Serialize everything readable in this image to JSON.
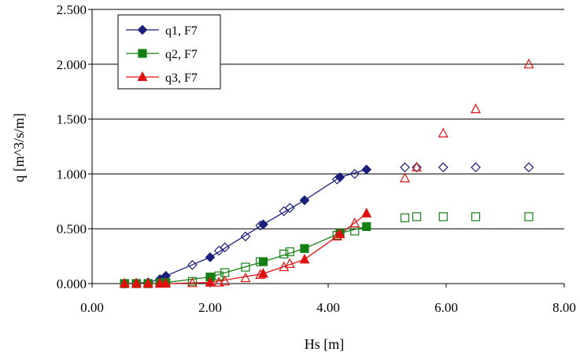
{
  "chart_data": {
    "type": "scatter",
    "title": "",
    "xlabel": "Hs [m]",
    "ylabel": "q [m^3/s/m]",
    "xlim": [
      0,
      8
    ],
    "ylim": [
      0,
      2.5
    ],
    "x_ticks": [
      "0.00",
      "2.00",
      "4.00",
      "6.00",
      "8.00"
    ],
    "y_ticks": [
      "0.000",
      "0.500",
      "1.000",
      "1.500",
      "2.000",
      "2.500"
    ],
    "x_tick_values": [
      0,
      2,
      4,
      6,
      8
    ],
    "y_tick_values": [
      0,
      0.5,
      1.0,
      1.5,
      2.0,
      2.5
    ],
    "grid": "horizontal",
    "legend_position": "top-left",
    "series": [
      {
        "name": "q1, F7",
        "color": "#1a1f7a",
        "marker": "diamond",
        "filled": {
          "x": [
            0.55,
            0.75,
            0.95,
            1.15,
            1.25,
            2.0,
            2.9,
            3.6,
            4.2,
            4.65
          ],
          "y": [
            0.0,
            0.005,
            0.01,
            0.04,
            0.07,
            0.24,
            0.54,
            0.76,
            0.97,
            1.04
          ]
        },
        "open": {
          "x": [
            0.55,
            0.75,
            0.95,
            1.15,
            1.7,
            2.15,
            2.25,
            2.6,
            2.85,
            3.25,
            3.35,
            4.15,
            4.45,
            5.3,
            5.5,
            5.95,
            6.5,
            7.4
          ],
          "y": [
            0.0,
            0.005,
            0.01,
            0.03,
            0.17,
            0.3,
            0.33,
            0.43,
            0.53,
            0.66,
            0.69,
            0.95,
            1.0,
            1.06,
            1.06,
            1.06,
            1.06,
            1.06
          ]
        }
      },
      {
        "name": "q2, F7",
        "color": "#138013",
        "marker": "square",
        "filled": {
          "x": [
            0.55,
            0.75,
            0.95,
            1.15,
            1.25,
            2.0,
            2.9,
            3.6,
            4.2,
            4.65
          ],
          "y": [
            0.0,
            0.0,
            0.0,
            0.005,
            0.01,
            0.06,
            0.2,
            0.32,
            0.46,
            0.52
          ]
        },
        "open": {
          "x": [
            0.55,
            0.75,
            0.95,
            1.15,
            1.7,
            2.15,
            2.25,
            2.6,
            2.85,
            3.25,
            3.35,
            4.15,
            4.45,
            5.3,
            5.5,
            5.95,
            6.5,
            7.4
          ],
          "y": [
            0.0,
            0.0,
            0.0,
            0.005,
            0.02,
            0.07,
            0.1,
            0.15,
            0.2,
            0.27,
            0.29,
            0.44,
            0.48,
            0.6,
            0.61,
            0.61,
            0.61,
            0.61
          ]
        }
      },
      {
        "name": "q3, F7",
        "color": "#e01010",
        "marker": "triangle",
        "filled": {
          "x": [
            0.55,
            0.75,
            0.95,
            1.15,
            1.25,
            2.0,
            2.9,
            3.6,
            4.2,
            4.65
          ],
          "y": [
            0.0,
            0.0,
            0.0,
            0.0,
            0.0,
            0.01,
            0.09,
            0.22,
            0.45,
            0.64
          ]
        },
        "open": {
          "x": [
            0.55,
            0.75,
            0.95,
            1.15,
            1.7,
            2.15,
            2.25,
            2.6,
            2.85,
            3.25,
            3.35,
            4.15,
            4.45,
            5.3,
            5.5,
            5.95,
            6.5,
            7.4
          ],
          "y": [
            0.0,
            0.0,
            0.0,
            0.0,
            0.005,
            0.01,
            0.02,
            0.05,
            0.08,
            0.15,
            0.18,
            0.43,
            0.55,
            0.96,
            1.06,
            1.37,
            1.59,
            2.0
          ]
        }
      }
    ]
  }
}
